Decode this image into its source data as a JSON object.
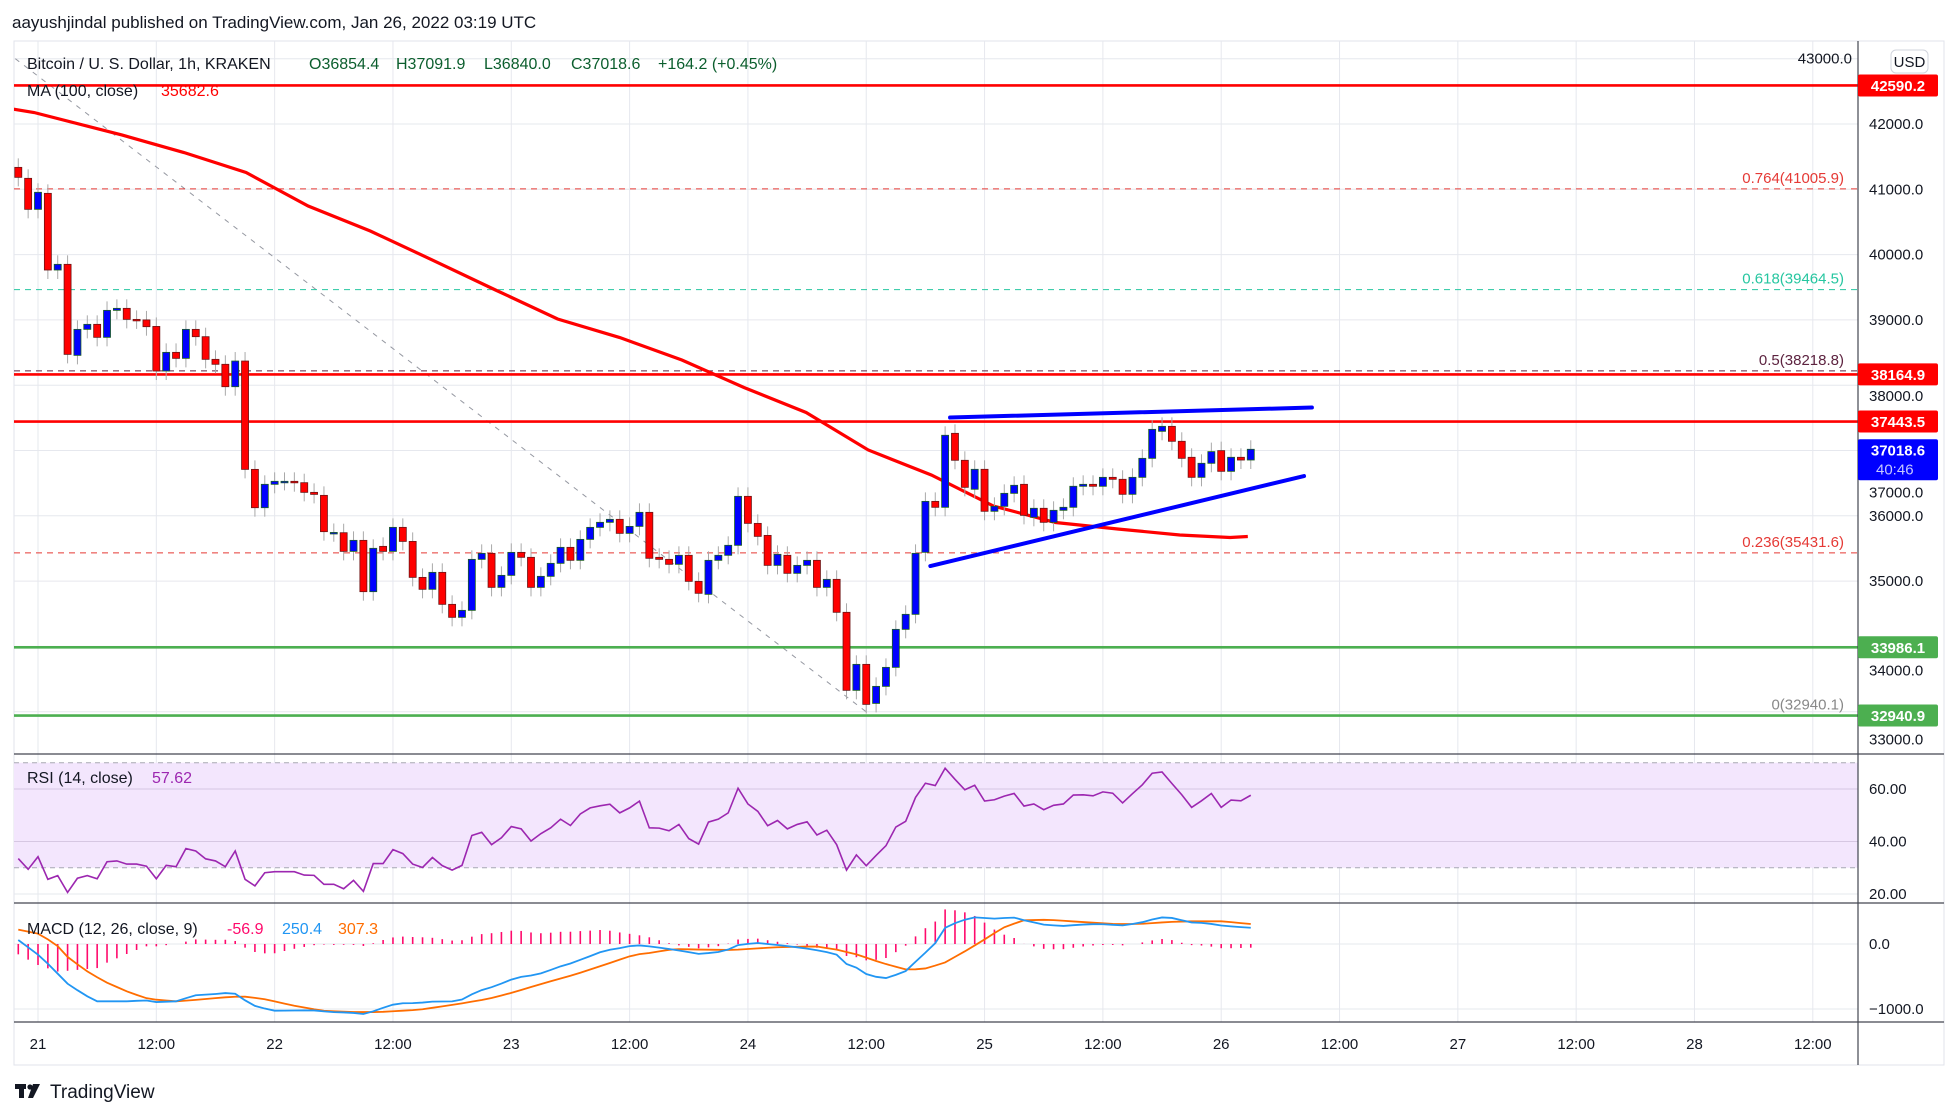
{
  "header": {
    "published": "aayushjindal published on TradingView.com, Jan 26, 2022 03:19 UTC"
  },
  "legend": {
    "symbol": "Bitcoin / U. S. Dollar, 1h, KRAKEN",
    "open": "O36854.4",
    "high": "H37091.9",
    "low": "L36840.0",
    "close": "C37018.6",
    "change": "+164.2 (+0.45%)",
    "ma_label": "MA (100, close)",
    "ma_value": "35682.6"
  },
  "rsi_legend": {
    "label": "RSI (14, close)",
    "value": "57.62"
  },
  "macd_legend": {
    "label": "MACD (12, 26, close, 9)",
    "hist": "-56.9",
    "macd": "250.4",
    "signal": "307.3"
  },
  "price_axis": {
    "currency_button": "USD",
    "ticks": [
      {
        "value": 43000,
        "label": "43000.0"
      },
      {
        "value": 42000,
        "label": "42000.0"
      },
      {
        "value": 41000,
        "label": "41000.0"
      },
      {
        "value": 40000,
        "label": "40000.0"
      },
      {
        "value": 39000,
        "label": "39000.0"
      },
      {
        "value": 38000,
        "label": "38000.0"
      },
      {
        "value": 37000,
        "label": "37000.0"
      },
      {
        "value": 36000,
        "label": "36000.0"
      },
      {
        "value": 35000,
        "label": "35000.0"
      },
      {
        "value": 34000,
        "label": "34000.0"
      },
      {
        "value": 33000,
        "label": "33000.0"
      }
    ],
    "badges": [
      {
        "value": 42590.2,
        "label": "42590.2",
        "color": "#ff0000"
      },
      {
        "value": 38164.9,
        "label": "38164.9",
        "color": "#ff0000"
      },
      {
        "value": 37443.5,
        "label": "37443.5",
        "color": "#ff0000"
      },
      {
        "value": 33986.1,
        "label": "33986.1",
        "color": "#4caf50"
      },
      {
        "value": 32940.9,
        "label": "32940.9",
        "color": "#4caf50"
      }
    ],
    "last_price": {
      "value": 37018.6,
      "label": "37018.6",
      "countdown": "40:46",
      "color": "#0000ff"
    }
  },
  "rsi_axis": [
    {
      "value": 60,
      "label": "60.00"
    },
    {
      "value": 40,
      "label": "40.00"
    },
    {
      "value": 20,
      "label": "20.00"
    }
  ],
  "macd_axis": [
    {
      "value": 0,
      "label": "0.0"
    },
    {
      "value": -1000,
      "label": "−1000.0"
    }
  ],
  "time_axis": [
    {
      "hour": 0,
      "label": "21"
    },
    {
      "hour": 12,
      "label": "12:00"
    },
    {
      "hour": 24,
      "label": "22"
    },
    {
      "hour": 36,
      "label": "12:00"
    },
    {
      "hour": 48,
      "label": "23"
    },
    {
      "hour": 60,
      "label": "12:00"
    },
    {
      "hour": 72,
      "label": "24"
    },
    {
      "hour": 84,
      "label": "12:00"
    },
    {
      "hour": 96,
      "label": "25"
    },
    {
      "hour": 108,
      "label": "12:00"
    },
    {
      "hour": 120,
      "label": "26"
    },
    {
      "hour": 132,
      "label": "12:00"
    },
    {
      "hour": 144,
      "label": "27"
    },
    {
      "hour": 156,
      "label": "12:00"
    },
    {
      "hour": 168,
      "label": "28"
    },
    {
      "hour": 180,
      "label": "12:00"
    }
  ],
  "footer": {
    "brand": "TradingView"
  },
  "colors": {
    "up": "#0000ff",
    "down": "#ff0000",
    "ma": "#ff0000",
    "trend": "#0000ff",
    "rsi": "#9c27b0",
    "macd": "#2196f3",
    "signal": "#ff6d00",
    "hist": "#ff0a6c",
    "support": "#4caf50"
  },
  "chart_data": {
    "type": "candlestick",
    "title": "Bitcoin / U. S. Dollar, 1h, KRAKEN",
    "x_unit": "hours since Jan 21 00:00 UTC",
    "first_candle_hour": -2,
    "ylim": [
      32500,
      43300
    ],
    "candles_open_close": [
      [
        41336,
        41183
      ],
      [
        41168,
        40693
      ],
      [
        40693,
        40954
      ],
      [
        40938,
        39764
      ],
      [
        39764,
        39851
      ],
      [
        39851,
        38472
      ],
      [
        38457,
        38855
      ],
      [
        38855,
        38932
      ],
      [
        38932,
        38733
      ],
      [
        38733,
        39146
      ],
      [
        39146,
        39177
      ],
      [
        39177,
        39008
      ],
      [
        39008,
        39000
      ],
      [
        39000,
        38896
      ],
      [
        38900,
        38217
      ],
      [
        38217,
        38503
      ],
      [
        38503,
        38411
      ],
      [
        38411,
        38855
      ],
      [
        38855,
        38743
      ],
      [
        38743,
        38396
      ],
      [
        38396,
        38320
      ],
      [
        38320,
        37977
      ],
      [
        37977,
        38370
      ],
      [
        38370,
        36711
      ],
      [
        36711,
        36124
      ],
      [
        36124,
        36482
      ],
      [
        36482,
        36528
      ],
      [
        36528,
        36528
      ],
      [
        36528,
        36507
      ],
      [
        36507,
        36359
      ],
      [
        36359,
        36328
      ],
      [
        36313,
        35757
      ],
      [
        35741,
        35745
      ],
      [
        35741,
        35455
      ],
      [
        35455,
        35624
      ],
      [
        35624,
        34838
      ],
      [
        34838,
        35502
      ],
      [
        35532,
        35455
      ],
      [
        35455,
        35823
      ],
      [
        35823,
        35608
      ],
      [
        35608,
        35057
      ],
      [
        35057,
        34874
      ],
      [
        34874,
        35134
      ],
      [
        35134,
        34644
      ],
      [
        34644,
        34445
      ],
      [
        34445,
        34552
      ],
      [
        34552,
        35333
      ],
      [
        35333,
        35425
      ],
      [
        35425,
        34904
      ],
      [
        34904,
        35088
      ],
      [
        35088,
        35440
      ],
      [
        35440,
        35364
      ],
      [
        35364,
        34904
      ],
      [
        34904,
        35073
      ],
      [
        35073,
        35272
      ],
      [
        35272,
        35517
      ],
      [
        35517,
        35318
      ],
      [
        35318,
        35639
      ],
      [
        35639,
        35823
      ],
      [
        35823,
        35900
      ],
      [
        35900,
        35946
      ],
      [
        35946,
        35731
      ],
      [
        35731,
        35838
      ],
      [
        35838,
        36053
      ],
      [
        36053,
        35349
      ],
      [
        35364,
        35333
      ],
      [
        35333,
        35257
      ],
      [
        35257,
        35395
      ],
      [
        35395,
        34996
      ],
      [
        34996,
        34813
      ],
      [
        34797,
        35318
      ],
      [
        35318,
        35395
      ],
      [
        35395,
        35548
      ],
      [
        35548,
        36298
      ],
      [
        36298,
        35884
      ],
      [
        35884,
        35685
      ],
      [
        35700,
        35241
      ],
      [
        35241,
        35410
      ],
      [
        35395,
        35119
      ],
      [
        35119,
        35241
      ],
      [
        35241,
        35318
      ],
      [
        35318,
        34904
      ],
      [
        34904,
        35027
      ],
      [
        35027,
        34522
      ],
      [
        34522,
        33327
      ],
      [
        33327,
        33725
      ],
      [
        33725,
        33112
      ],
      [
        33127,
        33388
      ],
      [
        33388,
        33679
      ],
      [
        33679,
        34261
      ],
      [
        34261,
        34491
      ],
      [
        34491,
        35425
      ],
      [
        35441,
        36221
      ],
      [
        36221,
        36130
      ],
      [
        36130,
        37233
      ],
      [
        37263,
        36850
      ],
      [
        36850,
        36436
      ],
      [
        36406,
        36712
      ],
      [
        36712,
        36069
      ],
      [
        36069,
        36145
      ],
      [
        36145,
        36344
      ],
      [
        36344,
        36467
      ],
      [
        36482,
        36007
      ],
      [
        35977,
        36115
      ],
      [
        36115,
        35900
      ],
      [
        35900,
        36084
      ],
      [
        36084,
        36130
      ],
      [
        36130,
        36452
      ],
      [
        36452,
        36482
      ],
      [
        36482,
        36452
      ],
      [
        36452,
        36589
      ],
      [
        36589,
        36559
      ],
      [
        36559,
        36329
      ],
      [
        36329,
        36589
      ],
      [
        36589,
        36880
      ],
      [
        36880,
        37324
      ],
      [
        37294,
        37370
      ],
      [
        37370,
        37141
      ],
      [
        37141,
        36880
      ],
      [
        36896,
        36589
      ],
      [
        36589,
        36804
      ],
      [
        36804,
        36983
      ],
      [
        36998,
        36681
      ],
      [
        36681,
        36896
      ],
      [
        36896,
        36854
      ],
      [
        36854.4,
        37018.6
      ]
    ],
    "ma100": [
      [
        -2.6,
        42230
      ],
      [
        -0.4,
        42176
      ],
      [
        8.5,
        41832
      ],
      [
        14.8,
        41563
      ],
      [
        21.1,
        41257
      ],
      [
        27.4,
        40744
      ],
      [
        33.7,
        40361
      ],
      [
        40,
        39917
      ],
      [
        46.4,
        39458
      ],
      [
        52.7,
        39014
      ],
      [
        59,
        38730
      ],
      [
        65.3,
        38386
      ],
      [
        71.6,
        37965
      ],
      [
        77.9,
        37582
      ],
      [
        84.2,
        37008
      ],
      [
        90.6,
        36625
      ],
      [
        96.9,
        36150
      ],
      [
        103.2,
        35897
      ],
      [
        109.5,
        35798
      ],
      [
        115.8,
        35706
      ],
      [
        120.9,
        35668
      ],
      [
        122.7,
        35682.6
      ]
    ],
    "fib_levels": [
      {
        "ratio": "0.764",
        "price": 41005.9,
        "label": "0.764(41005.9)",
        "color": "#e53935"
      },
      {
        "ratio": "0.618",
        "price": 39464.5,
        "label": "0.618(39464.5)",
        "color": "#26c6a0"
      },
      {
        "ratio": "0.5",
        "price": 38218.8,
        "label": "0.5(38218.8)",
        "color": "#5d2340"
      },
      {
        "ratio": "0.236",
        "price": 35431.6,
        "label": "0.236(35431.6)",
        "color": "#e53935"
      },
      {
        "ratio": "0",
        "price": 32940.1,
        "label": "0(32940.1)",
        "color": "#888888"
      }
    ],
    "horizontal_levels": [
      {
        "price": 42590.2,
        "color": "#ff0000"
      },
      {
        "price": 38164.9,
        "color": "#ff0000"
      },
      {
        "price": 37443.5,
        "color": "#ff0000"
      },
      {
        "price": 33986.1,
        "color": "#4caf50"
      },
      {
        "price": 32940.9,
        "color": "#4caf50"
      }
    ],
    "trendlines": [
      {
        "name": "upper-resistance",
        "from": [
          92.5,
          37505
        ],
        "to": [
          129.2,
          37658
        ]
      },
      {
        "name": "lower-support",
        "from": [
          90.5,
          35231
        ],
        "to": [
          128.4,
          36609
        ]
      }
    ],
    "fib_diagonal": {
      "from": [
        -2.3,
        43000
      ],
      "to": [
        84.5,
        32940
      ]
    },
    "rsi": [
      33.5,
      29.4,
      34.2,
      25.6,
      27,
      20.6,
      26,
      27,
      25.8,
      32.3,
      32.6,
      31.4,
      31.4,
      30.6,
      25.8,
      30.9,
      30.4,
      37.3,
      36.4,
      33.4,
      32.6,
      30.4,
      36.4,
      25.6,
      23.1,
      28.1,
      28.5,
      28.5,
      28.5,
      27.2,
      27.1,
      23.7,
      23.7,
      22,
      25.2,
      21,
      31.6,
      31.6,
      36.9,
      35.4,
      31.4,
      30.1,
      33.9,
      30.8,
      29.1,
      30.9,
      42.3,
      43.5,
      38.8,
      41.4,
      45.7,
      44.8,
      40.2,
      43,
      45.2,
      48.5,
      46.1,
      50.5,
      52.8,
      53.6,
      54.2,
      50.9,
      52.8,
      55.4,
      45.2,
      45.1,
      44.1,
      46.5,
      41.1,
      39,
      47.4,
      48.5,
      50.9,
      60.3,
      54.3,
      51.5,
      46,
      48,
      44.8,
      46.5,
      47.5,
      42.5,
      44.3,
      38.8,
      29.1,
      34.9,
      30.8,
      34.7,
      38.4,
      45.5,
      47.7,
      56.8,
      62.2,
      61.3,
      67.9,
      63.7,
      59.7,
      61.4,
      55.4,
      55.9,
      57.3,
      58.3,
      53.5,
      54.3,
      52.1,
      53.8,
      54.3,
      57.7,
      57.8,
      57.4,
      58.9,
      58.4,
      54.7,
      58.2,
      61.6,
      66,
      66.5,
      62.1,
      57.8,
      53,
      55.5,
      58.3,
      53,
      55.8,
      55.5,
      57.62
    ],
    "rsi_band": [
      30,
      70
    ],
    "macd_line": [
      [
        -2.5,
        118
      ],
      [
        0,
        -164
      ],
      [
        1.1,
        -318
      ],
      [
        3.1,
        -626
      ],
      [
        5,
        -805
      ],
      [
        6,
        -882
      ],
      [
        9,
        -882
      ],
      [
        10.9,
        -867
      ],
      [
        12,
        -893
      ],
      [
        14,
        -882
      ],
      [
        15.9,
        -790
      ],
      [
        17.9,
        -770
      ],
      [
        19.8,
        -744
      ],
      [
        20.9,
        -857
      ],
      [
        21.8,
        -944
      ],
      [
        23.8,
        -1026
      ],
      [
        27.9,
        -1021
      ],
      [
        29.8,
        -1047
      ],
      [
        31.9,
        -1057
      ],
      [
        32.7,
        -1088
      ],
      [
        33.7,
        -1052
      ],
      [
        35.7,
        -944
      ],
      [
        36.6,
        -913
      ],
      [
        38.7,
        -908
      ],
      [
        39.6,
        -887
      ],
      [
        42.6,
        -882
      ],
      [
        43.5,
        -821
      ],
      [
        44.5,
        -728
      ],
      [
        45.6,
        -687
      ],
      [
        47.6,
        -575
      ],
      [
        48.5,
        -513
      ],
      [
        49.6,
        -498
      ],
      [
        51.6,
        -431
      ],
      [
        52.5,
        -359
      ],
      [
        53.5,
        -328
      ],
      [
        54.5,
        -272
      ],
      [
        56.4,
        -164
      ],
      [
        57.4,
        -103
      ],
      [
        59.5,
        -51
      ],
      [
        60.5,
        -15
      ],
      [
        62,
        -36
      ],
      [
        64.5,
        -87
      ],
      [
        67.1,
        -154
      ],
      [
        69.6,
        -113
      ],
      [
        71.1,
        -10
      ],
      [
        73,
        15
      ],
      [
        74.7,
        -10
      ],
      [
        77.6,
        -62
      ],
      [
        79.7,
        -113
      ],
      [
        81,
        -164
      ],
      [
        82,
        -308
      ],
      [
        83.1,
        -369
      ],
      [
        84.1,
        -472
      ],
      [
        85.8,
        -534
      ],
      [
        87.9,
        -431
      ],
      [
        89.4,
        -215
      ],
      [
        90.9,
        -10
      ],
      [
        92.1,
        272
      ],
      [
        94,
        374
      ],
      [
        94.9,
        410
      ],
      [
        97,
        390
      ],
      [
        98.9,
        410
      ],
      [
        99.9,
        369
      ],
      [
        102,
        298
      ],
      [
        103.9,
        277
      ],
      [
        105.8,
        298
      ],
      [
        107.5,
        308
      ],
      [
        110,
        287
      ],
      [
        111.7,
        323
      ],
      [
        113.8,
        410
      ],
      [
        115.1,
        400
      ],
      [
        116.8,
        333
      ],
      [
        118.4,
        323
      ],
      [
        120.1,
        282
      ],
      [
        121.8,
        262
      ],
      [
        123,
        250.4
      ]
    ],
    "signal_line": [
      [
        -2.5,
        236
      ],
      [
        0,
        159
      ],
      [
        1.8,
        0
      ],
      [
        3.1,
        -215
      ],
      [
        5,
        -421
      ],
      [
        6.7,
        -575
      ],
      [
        9,
        -728
      ],
      [
        10.9,
        -831
      ],
      [
        12,
        -857
      ],
      [
        14,
        -882
      ],
      [
        16.2,
        -857
      ],
      [
        18.9,
        -821
      ],
      [
        20.7,
        -805
      ],
      [
        22.9,
        -846
      ],
      [
        25.8,
        -944
      ],
      [
        28.8,
        -1026
      ],
      [
        31.9,
        -1047
      ],
      [
        34.6,
        -1047
      ],
      [
        38.7,
        -1011
      ],
      [
        42.6,
        -923
      ],
      [
        45.6,
        -846
      ],
      [
        47.6,
        -770
      ],
      [
        51.6,
        -590
      ],
      [
        54.4,
        -472
      ],
      [
        57.5,
        -318
      ],
      [
        60.5,
        -164
      ],
      [
        62,
        -139
      ],
      [
        64.5,
        -77
      ],
      [
        67.5,
        -87
      ],
      [
        70.4,
        -92
      ],
      [
        74.7,
        -51
      ],
      [
        78.9,
        -36
      ],
      [
        81,
        -87
      ],
      [
        83.1,
        -164
      ],
      [
        85.6,
        -292
      ],
      [
        88.1,
        -395
      ],
      [
        89.8,
        -385
      ],
      [
        91.9,
        -292
      ],
      [
        94,
        -113
      ],
      [
        95.7,
        41
      ],
      [
        97.8,
        246
      ],
      [
        99.9,
        364
      ],
      [
        102.4,
        374
      ],
      [
        105.8,
        339
      ],
      [
        109.2,
        308
      ],
      [
        111.7,
        308
      ],
      [
        114.7,
        339
      ],
      [
        116.8,
        349
      ],
      [
        120.1,
        349
      ],
      [
        123,
        307.3
      ]
    ]
  }
}
